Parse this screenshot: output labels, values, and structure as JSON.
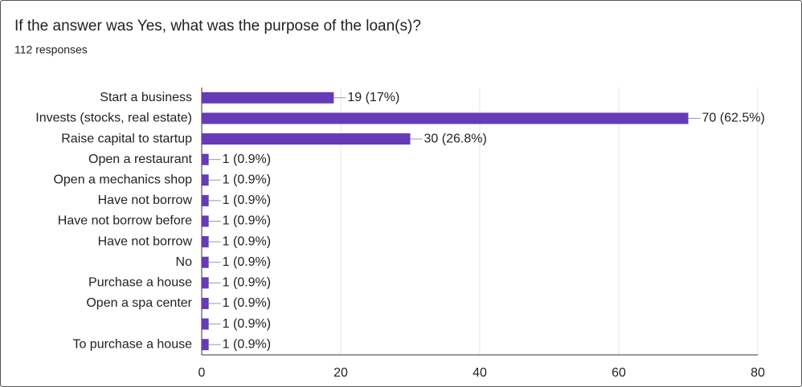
{
  "chart_data": {
    "type": "bar",
    "orientation": "horizontal",
    "title": "If the answer was Yes, what was the purpose of the loan(s)?",
    "subtitle": "112 responses",
    "categories": [
      "Start a business",
      "Invests (stocks, real estate)",
      "Raise capital to startup",
      "Open a restaurant",
      "Open a mechanics shop",
      "Have not borrow",
      "Have not borrow before",
      "Have not borrow",
      "No",
      "Purchase a house",
      "Open a spa center",
      null,
      "To purchase a house"
    ],
    "values": [
      19,
      70,
      30,
      1,
      1,
      1,
      1,
      1,
      1,
      1,
      1,
      1,
      1
    ],
    "value_labels": [
      "19 (17%)",
      "70 (62.5%)",
      "30 (26.8%)",
      "1 (0.9%)",
      "1 (0.9%)",
      "1 (0.9%)",
      "1 (0.9%)",
      "1 (0.9%)",
      "1 (0.9%)",
      "1 (0.9%)",
      "1 (0.9%)",
      "1 (0.9%)",
      "1 (0.9%)"
    ],
    "color": "#673ab7",
    "xlim": [
      0,
      80
    ],
    "xticks": [
      0,
      20,
      40,
      60,
      80
    ],
    "grid": true
  }
}
